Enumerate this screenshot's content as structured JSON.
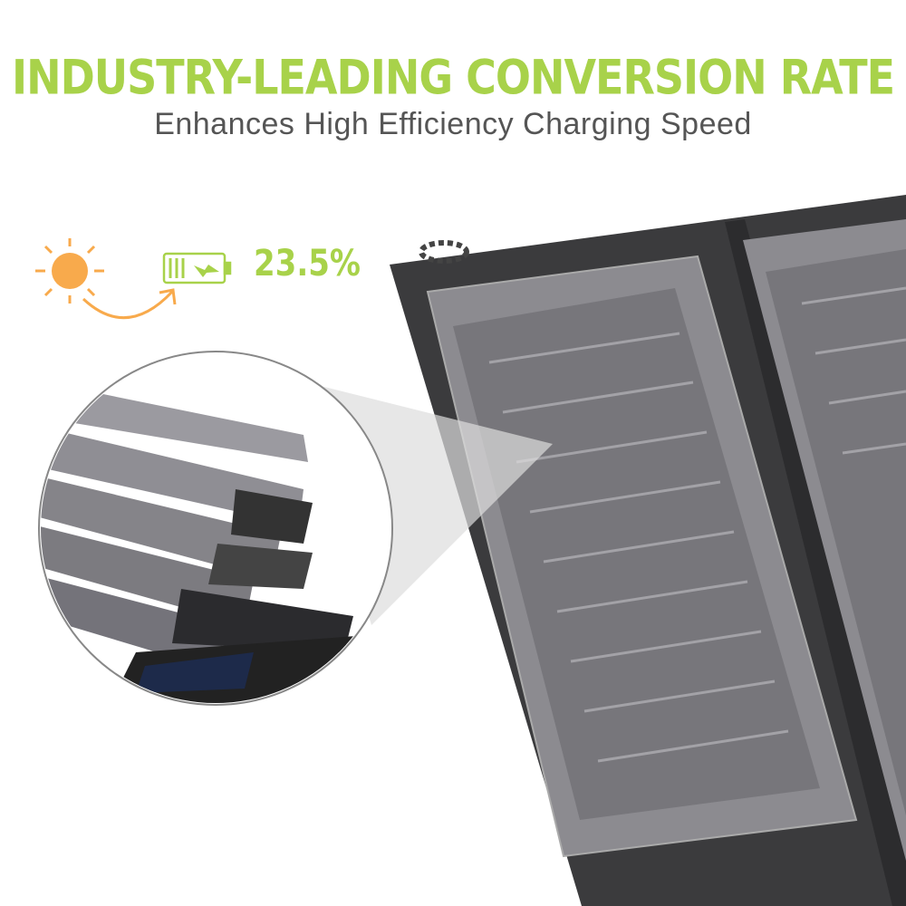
{
  "headline": "INDUSTRY-LEADING CONVERSION RATE",
  "subheadline": "Enhances High Efficiency Charging Speed",
  "conversion_rate": "23.5%",
  "icons": [
    "sun-icon",
    "curved-arrow-icon",
    "battery-charging-icon"
  ],
  "colors": {
    "accent_green": "#a8d24a",
    "sun_orange": "#f8aa4c",
    "text_gray": "#555555",
    "panel_frame": "#3a3a3c",
    "cell_gray": "#8a898e"
  }
}
